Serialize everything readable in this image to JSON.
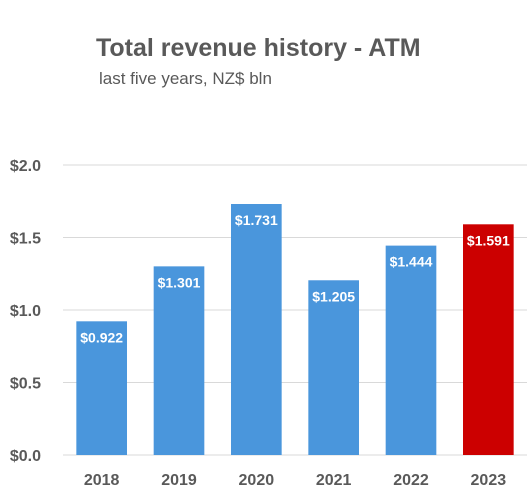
{
  "chart_data": {
    "type": "bar",
    "title": "Total revenue history - ATM",
    "subtitle": "last five years, NZ$ bln",
    "categories": [
      "2018",
      "2019",
      "2020",
      "2021",
      "2022",
      "2023"
    ],
    "values": [
      0.922,
      1.301,
      1.731,
      1.205,
      1.444,
      1.591
    ],
    "data_labels": [
      "$0.922",
      "$1.301",
      "$1.731",
      "$1.205",
      "$1.444",
      "$1.591"
    ],
    "ylim": [
      0,
      2.0
    ],
    "yticks": [
      0,
      0.5,
      1.0,
      1.5,
      2.0
    ],
    "ytick_labels": [
      "$0.0",
      "$0.5",
      "$1.0",
      "$1.5",
      "$2.0"
    ],
    "grid": "horizontal",
    "colors": {
      "bar": "#4a96dc",
      "highlight": "#cc0000",
      "grid": "#d9d9d9",
      "text": "#595959"
    },
    "highlight_category": "2023"
  }
}
